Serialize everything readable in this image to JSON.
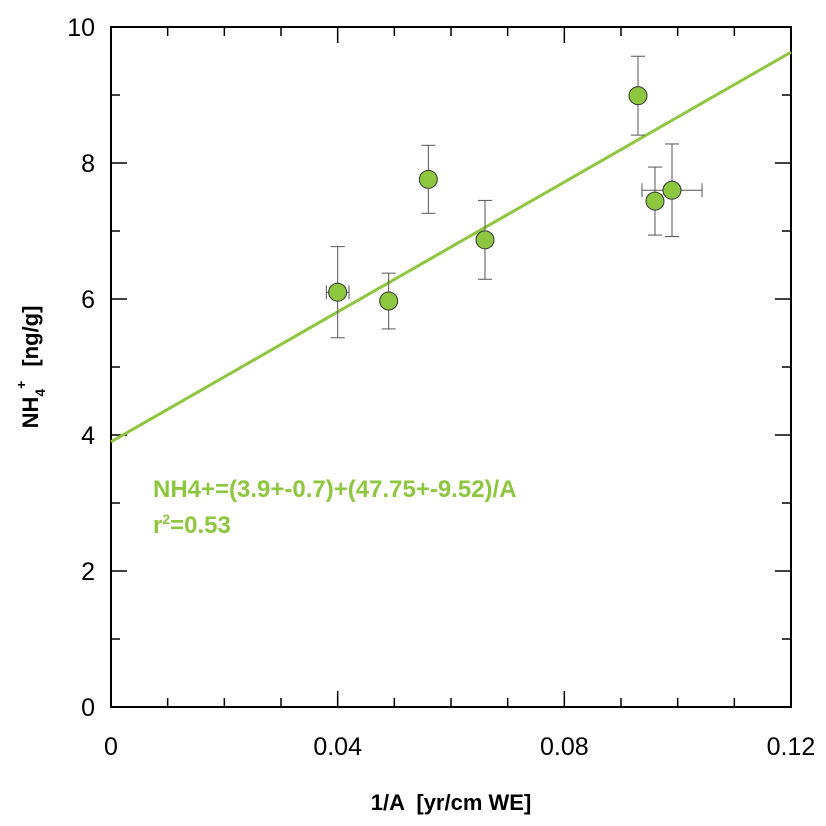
{
  "chart_data": {
    "type": "scatter",
    "x_label": "1/A  [yr/cm WE]",
    "y_label": {
      "base": "NH",
      "sub": "4",
      "sup": "+",
      "unit": "[ng/g]"
    },
    "annotation": {
      "equation": "NH4+=(3.9+-0.7)+(47.75+-9.52)/A",
      "r_base": "r",
      "r_sup": "2",
      "r_rest": "=0.53",
      "color": "#8dc63f"
    },
    "xlim": [
      0,
      0.12
    ],
    "ylim": [
      0,
      10
    ],
    "xticks": [
      0,
      0.04,
      0.08,
      0.12
    ],
    "yticks": [
      0,
      2,
      4,
      6,
      8,
      10
    ],
    "xminorticks": [
      0.01,
      0.02,
      0.03,
      0.05,
      0.06,
      0.07,
      0.09,
      0.1,
      0.11
    ],
    "yminorticks": [
      1,
      3,
      5,
      7,
      9
    ],
    "series": [
      {
        "color": "#8dc63f",
        "x": [
          0.04,
          0.049,
          0.056,
          0.066,
          0.093,
          0.096,
          0.099
        ],
        "y": [
          6.1,
          5.97,
          7.76,
          6.87,
          8.99,
          7.44,
          7.6
        ],
        "y_err": [
          0.67,
          0.41,
          0.5,
          0.58,
          0.58,
          0.5,
          0.68
        ],
        "x_err": [
          0.002,
          null,
          null,
          null,
          null,
          null,
          0.0053
        ]
      }
    ],
    "fit_line": {
      "color": "#8dc63f",
      "x": [
        0,
        0.12
      ],
      "y": [
        3.9,
        9.63
      ]
    }
  }
}
